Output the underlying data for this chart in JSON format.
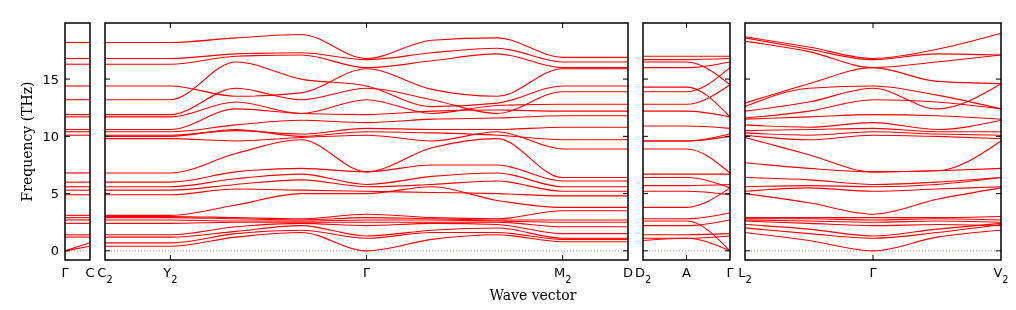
{
  "chart_data": [
    {
      "type": "line",
      "ylabel": "Frequency (THz)",
      "categories": [
        "Γ",
        "C"
      ],
      "ylim": [
        -0.8,
        19.9
      ],
      "yticks": [
        0,
        5,
        10,
        15
      ],
      "grid": false,
      "marker": "none",
      "line_style": "solid",
      "ref_lines": [
        {
          "axis": "y",
          "value": 0,
          "color": "#8080ff",
          "line_style": "dotted"
        }
      ],
      "series": [
        {
          "color": "#ff0000",
          "values": [
            18.2,
            18.2
          ]
        },
        {
          "color": "#ff0000",
          "values": [
            16.8,
            16.8
          ]
        },
        {
          "color": "#ff0000",
          "values": [
            16.3,
            16.3
          ]
        },
        {
          "color": "#ff0000",
          "values": [
            14.4,
            14.4
          ]
        },
        {
          "color": "#ff0000",
          "values": [
            13.2,
            13.2
          ]
        },
        {
          "color": "#ff0000",
          "values": [
            11.9,
            11.9
          ]
        },
        {
          "color": "#ff0000",
          "values": [
            11.7,
            11.7
          ]
        },
        {
          "color": "#ff0000",
          "values": [
            10.6,
            10.6
          ]
        },
        {
          "color": "#ff0000",
          "values": [
            10.4,
            10.4
          ]
        },
        {
          "color": "#ff0000",
          "values": [
            10.1,
            10.1
          ]
        },
        {
          "color": "#ff0000",
          "values": [
            6.8,
            6.8
          ]
        },
        {
          "color": "#ff0000",
          "values": [
            6.0,
            6.0
          ]
        },
        {
          "color": "#ff0000",
          "values": [
            5.6,
            5.6
          ]
        },
        {
          "color": "#ff0000",
          "values": [
            5.3,
            5.3
          ]
        },
        {
          "color": "#ff0000",
          "values": [
            4.9,
            4.9
          ]
        },
        {
          "color": "#ff0000",
          "values": [
            3.1,
            3.1
          ]
        },
        {
          "color": "#ff0000",
          "values": [
            2.9,
            2.9
          ]
        },
        {
          "color": "#ff0000",
          "values": [
            2.7,
            2.7
          ]
        },
        {
          "color": "#ff0000",
          "values": [
            2.4,
            2.4
          ]
        },
        {
          "color": "#ff0000",
          "values": [
            1.4,
            1.4
          ]
        },
        {
          "color": "#ff0000",
          "values": [
            1.2,
            1.2
          ]
        },
        {
          "color": "#ff0000",
          "values": [
            0,
            0.7
          ]
        },
        {
          "color": "#ff0000",
          "values": [
            0,
            0.4
          ]
        }
      ]
    },
    {
      "type": "line",
      "xlabel": "Wave vector",
      "categories": [
        "C$_{2}$",
        "Y$_{2}$",
        null,
        null,
        "Γ",
        null,
        null,
        "M$_{2}$",
        "D"
      ],
      "ylim": [
        -0.8,
        19.9
      ],
      "yticks": [
        0,
        5,
        10,
        15
      ],
      "tick_labels": "x",
      "grid": false,
      "marker": "none",
      "line_style": "solid",
      "ref_lines": [
        {
          "axis": "y",
          "value": 0,
          "color": "#8080ff",
          "line_style": "dotted"
        }
      ],
      "series": [
        {
          "color": "#ff0000",
          "values": [
            18.2,
            18.2,
            18.6,
            18.9,
            16.8,
            18.4,
            18.6,
            16.9,
            16.9
          ]
        },
        {
          "color": "#ff0000",
          "values": [
            16.8,
            16.8,
            17.2,
            17.3,
            16.7,
            17.3,
            17.7,
            16.5,
            16.5
          ]
        },
        {
          "color": "#ff0000",
          "values": [
            16.3,
            16.3,
            17.0,
            17.1,
            16.0,
            16.6,
            17.2,
            16.0,
            16.0
          ]
        },
        {
          "color": "#ff0000",
          "values": [
            14.4,
            14.4,
            13.5,
            13.8,
            15.9,
            14.1,
            13.5,
            15.9,
            15.9
          ]
        },
        {
          "color": "#ff0000",
          "values": [
            13.2,
            13.2,
            16.5,
            15.0,
            14.4,
            12.6,
            12.9,
            14.4,
            14.4
          ]
        },
        {
          "color": "#ff0000",
          "values": [
            11.9,
            11.9,
            14.2,
            13.2,
            14.2,
            13.2,
            12.0,
            13.9,
            13.9
          ]
        },
        {
          "color": "#ff0000",
          "values": [
            11.7,
            11.7,
            13.0,
            12.0,
            13.2,
            12.0,
            12.7,
            12.8,
            12.8
          ]
        },
        {
          "color": "#ff0000",
          "values": [
            10.6,
            10.6,
            12.4,
            12.0,
            11.9,
            12.2,
            12.3,
            12.2,
            12.2
          ]
        },
        {
          "color": "#ff0000",
          "values": [
            10.4,
            10.4,
            11.0,
            11.4,
            11.2,
            11.5,
            11.6,
            11.8,
            11.8
          ]
        },
        {
          "color": "#ff0000",
          "values": [
            10.1,
            10.1,
            10.5,
            10.2,
            10.7,
            10.6,
            10.6,
            10.8,
            10.8
          ]
        },
        {
          "color": "#ff0000",
          "values": [
            10.0,
            10.0,
            10.6,
            10.0,
            10.4,
            10.3,
            10.1,
            9.7,
            9.7
          ]
        },
        {
          "color": "#ff0000",
          "values": [
            9.8,
            9.8,
            9.6,
            9.9,
            10.1,
            9.6,
            10.4,
            8.9,
            8.9
          ]
        },
        {
          "color": "#ff0000",
          "values": [
            6.8,
            6.8,
            8.5,
            9.7,
            6.9,
            9.0,
            9.8,
            6.4,
            6.4
          ]
        },
        {
          "color": "#ff0000",
          "values": [
            6.0,
            6.0,
            6.9,
            7.2,
            6.9,
            7.5,
            7.5,
            6.1,
            6.1
          ]
        },
        {
          "color": "#ff0000",
          "values": [
            5.6,
            5.6,
            6.3,
            6.7,
            5.8,
            6.5,
            6.8,
            5.6,
            5.6
          ]
        },
        {
          "color": "#ff0000",
          "values": [
            5.3,
            5.3,
            5.8,
            6.2,
            5.6,
            5.8,
            6.1,
            5.2,
            5.2
          ]
        },
        {
          "color": "#ff0000",
          "values": [
            4.9,
            4.9,
            5.4,
            5.3,
            5.2,
            5.1,
            5.0,
            4.8,
            4.8
          ]
        },
        {
          "color": "#ff0000",
          "values": [
            3.1,
            3.1,
            4.0,
            5.0,
            5.0,
            5.6,
            4.4,
            3.8,
            3.8
          ]
        },
        {
          "color": "#ff0000",
          "values": [
            3.0,
            3.0,
            2.9,
            2.8,
            3.2,
            2.9,
            2.8,
            3.5,
            3.5
          ]
        },
        {
          "color": "#ff0000",
          "values": [
            2.9,
            2.9,
            2.8,
            2.7,
            2.9,
            2.8,
            2.7,
            2.7,
            2.7
          ]
        },
        {
          "color": "#ff0000",
          "values": [
            2.7,
            2.7,
            2.6,
            2.6,
            2.7,
            2.7,
            2.6,
            2.5,
            2.5
          ]
        },
        {
          "color": "#ff0000",
          "values": [
            2.4,
            2.4,
            2.5,
            2.5,
            2.5,
            2.5,
            2.5,
            2.1,
            2.1
          ]
        },
        {
          "color": "#ff0000",
          "values": [
            1.4,
            1.4,
            2.1,
            2.4,
            2.2,
            2.4,
            2.3,
            1.5,
            1.5
          ]
        },
        {
          "color": "#ff0000",
          "values": [
            1.2,
            1.2,
            1.7,
            2.2,
            1.3,
            1.8,
            2.0,
            1.1,
            1.1
          ]
        },
        {
          "color": "#ff0000",
          "values": [
            0.7,
            0.7,
            1.5,
            1.8,
            1.1,
            1.6,
            1.6,
            1.0,
            1.0
          ]
        },
        {
          "color": "#ff0000",
          "values": [
            0.4,
            0.4,
            1.2,
            1.6,
            0.0,
            1.0,
            1.4,
            0.8,
            0.8
          ]
        }
      ]
    },
    {
      "type": "line",
      "categories": [
        "D$_{2}$",
        "A",
        "Γ"
      ],
      "ylim": [
        -0.8,
        19.9
      ],
      "yticks": [
        0,
        5,
        10,
        15
      ],
      "tick_labels": "x",
      "grid": false,
      "marker": "none",
      "line_style": "solid",
      "ref_lines": [
        {
          "axis": "y",
          "value": 0,
          "color": "#8080ff",
          "line_style": "dotted"
        }
      ],
      "series": [
        {
          "color": "#ff0000",
          "values": [
            17.0,
            17.0,
            17.0
          ]
        },
        {
          "color": "#ff0000",
          "values": [
            16.7,
            16.7,
            16.8
          ]
        },
        {
          "color": "#ff0000",
          "values": [
            16.5,
            16.5,
            14.5
          ]
        },
        {
          "color": "#ff0000",
          "values": [
            16.0,
            16.0,
            16.5
          ]
        },
        {
          "color": "#ff0000",
          "values": [
            14.3,
            14.3,
            11.7
          ]
        },
        {
          "color": "#ff0000",
          "values": [
            13.9,
            13.9,
            16.0
          ]
        },
        {
          "color": "#ff0000",
          "values": [
            12.8,
            12.8,
            14.5
          ]
        },
        {
          "color": "#ff0000",
          "values": [
            12.2,
            12.2,
            11.7
          ]
        },
        {
          "color": "#ff0000",
          "values": [
            10.9,
            10.9,
            10.7
          ]
        },
        {
          "color": "#ff0000",
          "values": [
            9.6,
            9.6,
            10.2
          ]
        },
        {
          "color": "#ff0000",
          "values": [
            9.6,
            9.6,
            10.0
          ]
        },
        {
          "color": "#ff0000",
          "values": [
            8.9,
            8.9,
            6.8
          ]
        },
        {
          "color": "#ff0000",
          "values": [
            6.7,
            6.7,
            6.7
          ]
        },
        {
          "color": "#ff0000",
          "values": [
            6.4,
            6.4,
            5.5
          ]
        },
        {
          "color": "#ff0000",
          "values": [
            5.7,
            5.7,
            5.8
          ]
        },
        {
          "color": "#ff0000",
          "values": [
            5.2,
            5.2,
            4.9
          ]
        },
        {
          "color": "#ff0000",
          "values": [
            3.8,
            3.8,
            5.5
          ]
        },
        {
          "color": "#ff0000",
          "values": [
            2.8,
            2.8,
            3.3
          ]
        },
        {
          "color": "#ff0000",
          "values": [
            2.6,
            2.6,
            0.0
          ]
        },
        {
          "color": "#ff0000",
          "values": [
            2.2,
            2.2,
            2.7
          ]
        },
        {
          "color": "#ff0000",
          "values": [
            1.4,
            1.4,
            1.5
          ]
        },
        {
          "color": "#ff0000",
          "values": [
            1.1,
            1.1,
            1.3
          ]
        },
        {
          "color": "#ff0000",
          "values": [
            0.9,
            1.1,
            0.0
          ]
        }
      ]
    },
    {
      "type": "line",
      "categories": [
        "L$_{2}$",
        null,
        "Γ",
        null,
        "V$_{2}$"
      ],
      "ylim": [
        -0.8,
        19.9
      ],
      "yticks": [
        0,
        5,
        10,
        15
      ],
      "tick_labels": "x",
      "grid": false,
      "marker": "none",
      "line_style": "solid",
      "ref_lines": [
        {
          "axis": "y",
          "value": 0,
          "color": "#8080ff",
          "line_style": "dotted"
        }
      ],
      "series": [
        {
          "color": "#ff0000",
          "values": [
            18.7,
            17.8,
            16.8,
            17.6,
            19.0
          ]
        },
        {
          "color": "#ff0000",
          "values": [
            18.6,
            17.6,
            16.7,
            17.2,
            17.1
          ]
        },
        {
          "color": "#ff0000",
          "values": [
            18.3,
            17.4,
            16.0,
            16.5,
            17.1
          ]
        },
        {
          "color": "#ff0000",
          "values": [
            12.9,
            14.6,
            16.0,
            14.8,
            14.6
          ]
        },
        {
          "color": "#ff0000",
          "values": [
            12.6,
            14.2,
            14.4,
            13.6,
            12.4
          ]
        },
        {
          "color": "#ff0000",
          "values": [
            12.2,
            13.0,
            14.2,
            12.4,
            14.6
          ]
        },
        {
          "color": "#ff0000",
          "values": [
            11.6,
            12.2,
            13.2,
            13.0,
            12.4
          ]
        },
        {
          "color": "#ff0000",
          "values": [
            11.5,
            11.7,
            11.9,
            11.8,
            11.5
          ]
        },
        {
          "color": "#ff0000",
          "values": [
            11.0,
            10.8,
            11.2,
            10.6,
            11.4
          ]
        },
        {
          "color": "#ff0000",
          "values": [
            10.5,
            10.6,
            10.7,
            10.4,
            10.4
          ]
        },
        {
          "color": "#ff0000",
          "values": [
            10.3,
            10.1,
            10.4,
            10.2,
            10.1
          ]
        },
        {
          "color": "#ff0000",
          "values": [
            10.1,
            9.7,
            10.1,
            10.0,
            9.8
          ]
        },
        {
          "color": "#ff0000",
          "values": [
            9.9,
            8.4,
            6.9,
            7.0,
            9.6
          ]
        },
        {
          "color": "#ff0000",
          "values": [
            7.7,
            7.2,
            6.9,
            7.0,
            7.2
          ]
        },
        {
          "color": "#ff0000",
          "values": [
            6.4,
            6.2,
            5.8,
            6.0,
            6.4
          ]
        },
        {
          "color": "#ff0000",
          "values": [
            5.6,
            5.7,
            5.6,
            5.8,
            6.4
          ]
        },
        {
          "color": "#ff0000",
          "values": [
            5.2,
            5.5,
            5.2,
            5.4,
            5.6
          ]
        },
        {
          "color": "#ff0000",
          "values": [
            5.0,
            4.2,
            3.2,
            4.5,
            5.5
          ]
        },
        {
          "color": "#ff0000",
          "values": [
            2.9,
            2.9,
            2.9,
            2.9,
            3.0
          ]
        },
        {
          "color": "#ff0000",
          "values": [
            2.8,
            2.8,
            2.7,
            2.8,
            2.7
          ]
        },
        {
          "color": "#ff0000",
          "values": [
            2.7,
            2.6,
            2.5,
            2.6,
            2.5
          ]
        },
        {
          "color": "#ff0000",
          "values": [
            2.6,
            2.4,
            2.2,
            2.3,
            2.2
          ]
        },
        {
          "color": "#ff0000",
          "values": [
            2.3,
            1.9,
            1.3,
            1.9,
            2.4
          ]
        },
        {
          "color": "#ff0000",
          "values": [
            2.0,
            1.5,
            1.1,
            1.6,
            2.3
          ]
        },
        {
          "color": "#ff0000",
          "values": [
            1.6,
            0.9,
            0.0,
            1.2,
            1.8
          ]
        }
      ]
    }
  ]
}
